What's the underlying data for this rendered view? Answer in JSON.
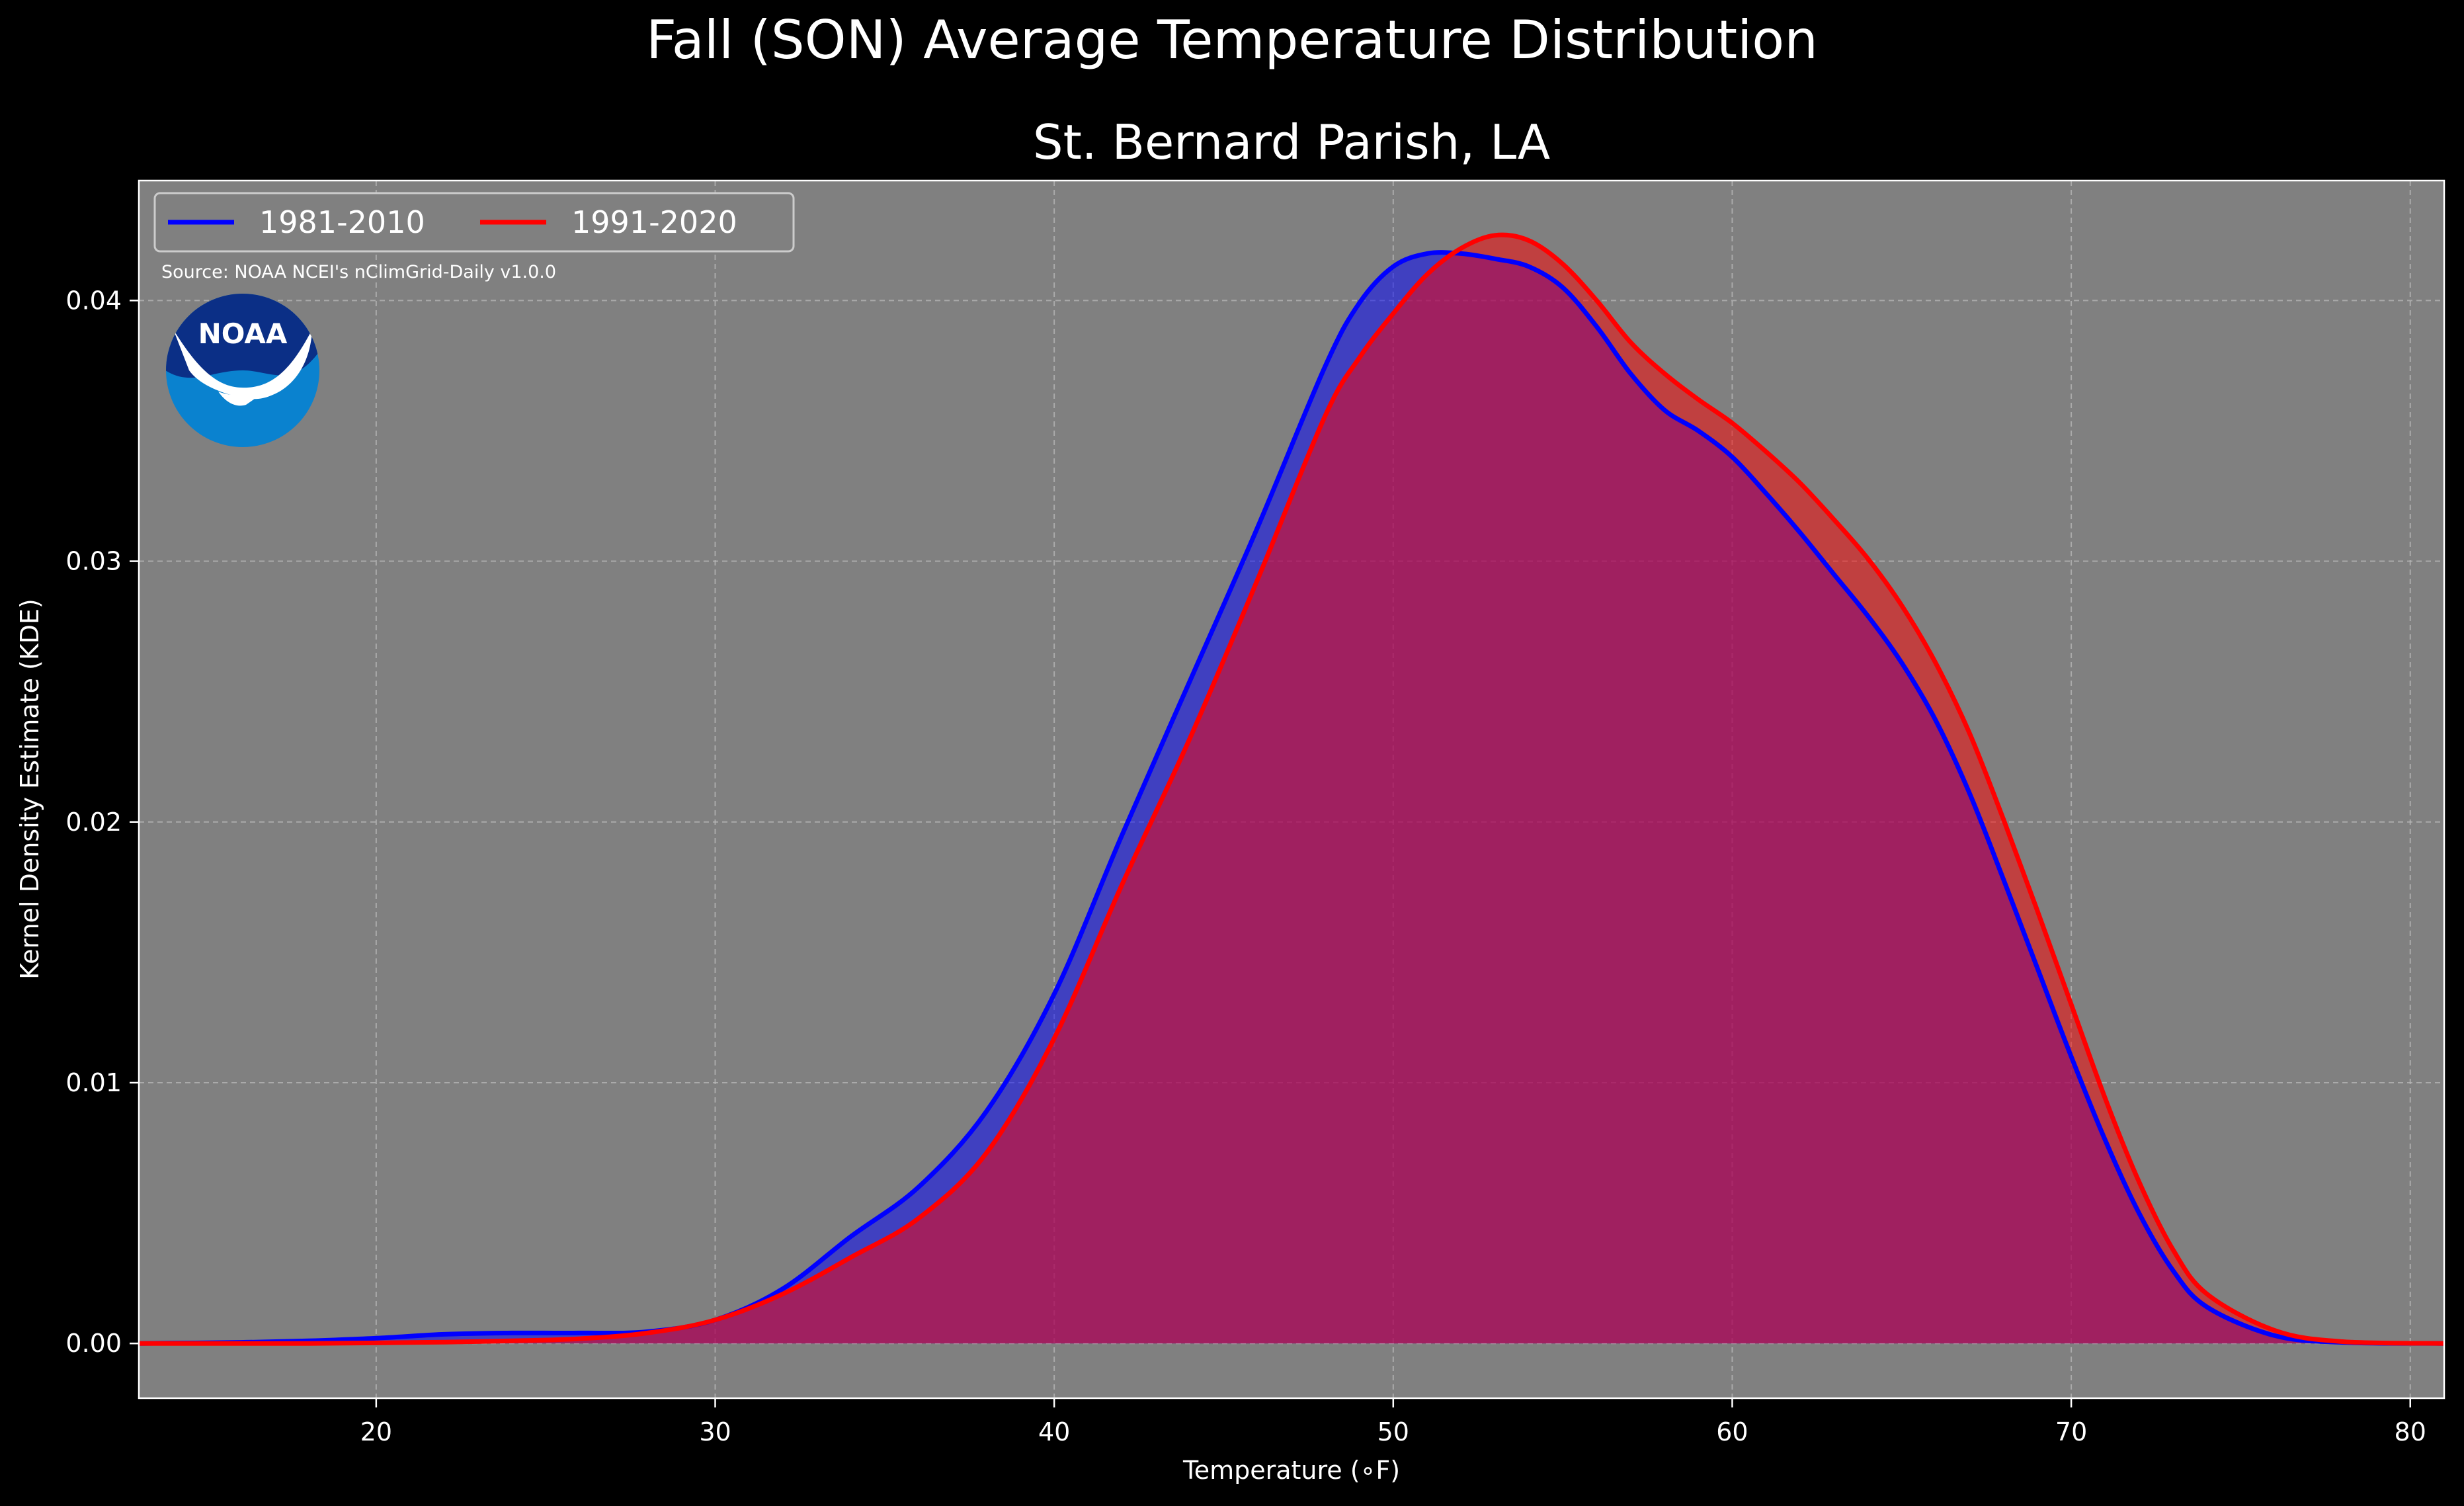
{
  "suptitle": "Fall (SON) Average Temperature Distribution",
  "source_text": "Source: NOAA NCEI's nClimGrid-Daily v1.0.0",
  "logo_text": "NOAA",
  "colors": {
    "background": "#000000",
    "plot_background": "#808080",
    "series_1981": "#0000ff",
    "series_1991": "#ff0000",
    "grid": "#b8b8b8",
    "text": "#ffffff"
  },
  "chart_data": {
    "type": "area",
    "title": "St. Bernard Parish, LA",
    "xlabel": "Temperature ($^\\circ$F)",
    "ylabel": "Kernel Density Estimate (KDE)",
    "xlim": [
      13,
      81
    ],
    "ylim": [
      -0.0021,
      0.0446
    ],
    "xticks": [
      20,
      30,
      40,
      50,
      60,
      70,
      80
    ],
    "xtick_labels": [
      "20",
      "30",
      "40",
      "50",
      "60",
      "70",
      "80"
    ],
    "yticks": [
      0.0,
      0.01,
      0.02,
      0.03,
      0.04
    ],
    "ytick_labels": [
      "0.00",
      "0.01",
      "0.02",
      "0.03",
      "0.04"
    ],
    "grid": true,
    "legend_position": "top-left",
    "series": [
      {
        "name": "1981-2010",
        "color": "#0000ff",
        "x": [
          13,
          16,
          18,
          20,
          22,
          24,
          26,
          28,
          30,
          32,
          34,
          36,
          38,
          40,
          42,
          44,
          46,
          48,
          49,
          50,
          51,
          52,
          53,
          54,
          55,
          56,
          57,
          58,
          59,
          60,
          61,
          62,
          63,
          64,
          65,
          66,
          67,
          68,
          69,
          70,
          71,
          72,
          73,
          74,
          76,
          78,
          81
        ],
        "y": [
          0.0,
          4e-05,
          0.0001,
          0.0002,
          0.00035,
          0.0004,
          0.0004,
          0.00045,
          0.0009,
          0.0021,
          0.0041,
          0.006,
          0.0089,
          0.0134,
          0.0195,
          0.0254,
          0.0313,
          0.0375,
          0.0399,
          0.0413,
          0.0418,
          0.0418,
          0.0416,
          0.0413,
          0.0405,
          0.039,
          0.0372,
          0.0358,
          0.035,
          0.034,
          0.0326,
          0.0311,
          0.0295,
          0.0279,
          0.0261,
          0.0239,
          0.0211,
          0.0178,
          0.0144,
          0.011,
          0.0078,
          0.005,
          0.0028,
          0.0014,
          0.0003,
          4e-05,
          0.0
        ]
      },
      {
        "name": "1991-2020",
        "color": "#ff0000",
        "x": [
          13,
          16,
          18,
          20,
          22,
          24,
          26,
          28,
          30,
          32,
          34,
          36,
          38,
          40,
          42,
          44,
          46,
          48,
          49,
          50,
          51,
          52,
          53,
          54,
          55,
          56,
          57,
          58,
          59,
          60,
          61,
          62,
          63,
          64,
          65,
          66,
          67,
          68,
          69,
          70,
          71,
          72,
          73,
          74,
          76,
          78,
          81
        ],
        "y": [
          0.0,
          0.0,
          0.0,
          2e-05,
          5e-05,
          0.0001,
          0.00018,
          0.0004,
          0.0009,
          0.0019,
          0.0033,
          0.0048,
          0.0073,
          0.0117,
          0.0176,
          0.0232,
          0.0293,
          0.0356,
          0.0378,
          0.0395,
          0.041,
          0.042,
          0.0425,
          0.0423,
          0.0414,
          0.04,
          0.0384,
          0.0372,
          0.0362,
          0.0353,
          0.0342,
          0.033,
          0.0316,
          0.0301,
          0.0283,
          0.0261,
          0.0234,
          0.0201,
          0.0166,
          0.013,
          0.0094,
          0.0062,
          0.0036,
          0.0019,
          0.0005,
          7e-05,
          0.0
        ]
      }
    ]
  }
}
